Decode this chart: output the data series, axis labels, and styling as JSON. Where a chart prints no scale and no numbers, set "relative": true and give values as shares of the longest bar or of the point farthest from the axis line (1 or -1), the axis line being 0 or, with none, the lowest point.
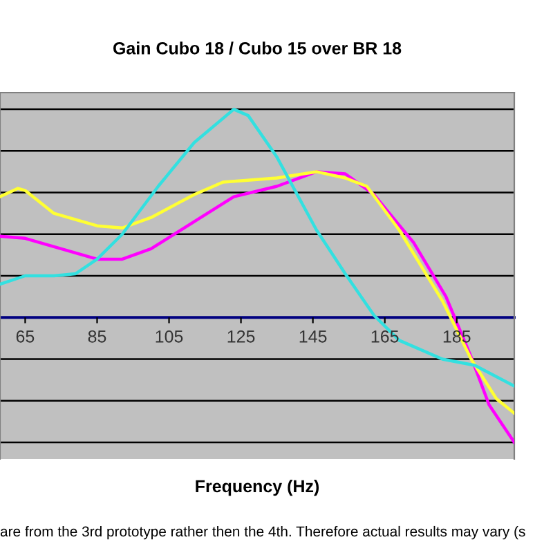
{
  "chart_data": {
    "type": "line",
    "title": "Gain Cubo 18 / Cubo 15 over BR 18",
    "xlabel": "Frequency (Hz)",
    "annotations": [
      "are from the 3rd prototype rather then the 4th. Therefore actual results may vary (s"
    ],
    "relative": true,
    "xlim": [
      58,
      201
    ],
    "xticks": [
      65,
      85,
      105,
      125,
      145,
      165,
      185
    ],
    "grid": "y",
    "legend": false,
    "marker": "none",
    "line_style": "solid",
    "series": [
      {
        "color": "#ff00ff",
        "x": [
          58,
          65,
          73,
          85,
          92,
          100,
          112,
          123,
          135,
          146,
          154,
          162,
          173,
          182,
          189,
          194,
          201
        ],
        "values": [
          0.39,
          0.38,
          0.34,
          0.28,
          0.28,
          0.33,
          0.46,
          0.58,
          0.63,
          0.7,
          0.69,
          0.59,
          0.36,
          0.1,
          -0.19,
          -0.42,
          -0.6
        ]
      },
      {
        "color": "#ffff33",
        "x": [
          58,
          63,
          65,
          73,
          85,
          92,
          100,
          112,
          120,
          135,
          146,
          154,
          160,
          169,
          181,
          189,
          196,
          201
        ],
        "values": [
          0.58,
          0.62,
          0.61,
          0.5,
          0.44,
          0.43,
          0.48,
          0.59,
          0.65,
          0.67,
          0.7,
          0.67,
          0.63,
          0.42,
          0.08,
          -0.2,
          -0.39,
          -0.46
        ]
      },
      {
        "color": "#33e0e0",
        "x": [
          58,
          65,
          73,
          79,
          85,
          92,
          102,
          112,
          123,
          127,
          135,
          146,
          154,
          162,
          169,
          181,
          190,
          201
        ],
        "values": [
          0.16,
          0.2,
          0.2,
          0.21,
          0.28,
          0.4,
          0.63,
          0.84,
          1,
          0.97,
          0.77,
          0.42,
          0.21,
          0.01,
          -0.11,
          -0.2,
          -0.23,
          -0.33
        ]
      }
    ]
  }
}
